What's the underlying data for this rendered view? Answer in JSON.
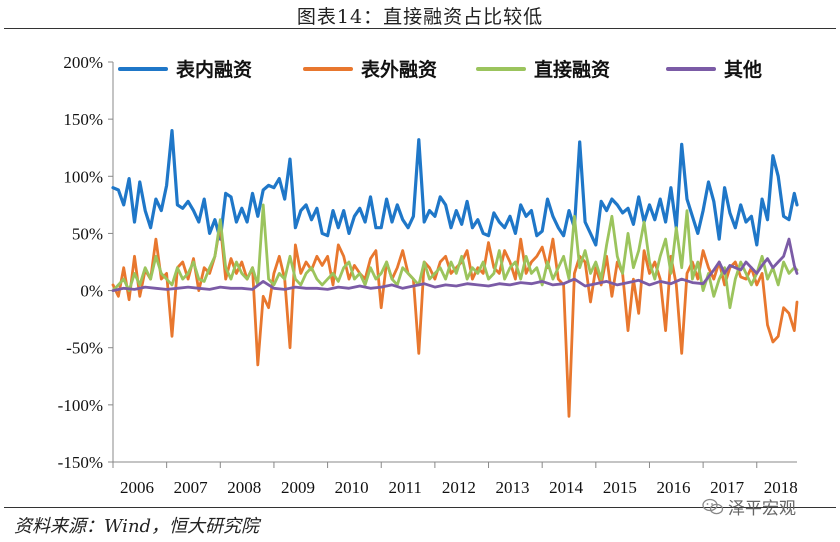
{
  "header": {
    "title": "图表14：直接融资占比较低"
  },
  "footer": {
    "source": "资料来源：Wind，恒大研究院",
    "watermark": "泽平宏观"
  },
  "chart_data": {
    "type": "line",
    "title": "图表14：直接融资占比较低",
    "xlabel": "",
    "ylabel": "",
    "ylim": [
      -150,
      200
    ],
    "yticks": [
      -150,
      -100,
      -50,
      0,
      50,
      100,
      150,
      200
    ],
    "ytick_labels": [
      "-150%",
      "-100%",
      "-50%",
      "0%",
      "50%",
      "100%",
      "150%",
      "200%"
    ],
    "xlim": [
      2006.0,
      2018.75
    ],
    "xticks": [
      2006,
      2007,
      2008,
      2009,
      2010,
      2011,
      2012,
      2013,
      2014,
      2015,
      2016,
      2017,
      2018
    ],
    "xtick_labels": [
      "2006",
      "2007",
      "2008",
      "2009",
      "2010",
      "2011",
      "2012",
      "2013",
      "2014",
      "2015",
      "2016",
      "2017",
      "2018"
    ],
    "grid": false,
    "legend_position": "top",
    "series": [
      {
        "name": "表内融资",
        "color": "#1F77C8",
        "x": [
          2006.0,
          2006.1,
          2006.2,
          2006.3,
          2006.4,
          2006.5,
          2006.6,
          2006.7,
          2006.8,
          2006.9,
          2007.0,
          2007.1,
          2007.2,
          2007.3,
          2007.4,
          2007.5,
          2007.6,
          2007.7,
          2007.8,
          2007.9,
          2008.0,
          2008.1,
          2008.2,
          2008.3,
          2008.4,
          2008.5,
          2008.6,
          2008.7,
          2008.8,
          2008.9,
          2009.0,
          2009.1,
          2009.2,
          2009.3,
          2009.4,
          2009.5,
          2009.6,
          2009.7,
          2009.8,
          2009.9,
          2010.0,
          2010.1,
          2010.2,
          2010.3,
          2010.4,
          2010.5,
          2010.6,
          2010.7,
          2010.8,
          2010.9,
          2011.0,
          2011.1,
          2011.2,
          2011.3,
          2011.4,
          2011.5,
          2011.6,
          2011.7,
          2011.8,
          2011.9,
          2012.0,
          2012.1,
          2012.2,
          2012.3,
          2012.4,
          2012.5,
          2012.6,
          2012.7,
          2012.8,
          2012.9,
          2013.0,
          2013.1,
          2013.2,
          2013.3,
          2013.4,
          2013.5,
          2013.6,
          2013.7,
          2013.8,
          2013.9,
          2014.0,
          2014.1,
          2014.2,
          2014.3,
          2014.4,
          2014.5,
          2014.6,
          2014.7,
          2014.8,
          2014.9,
          2015.0,
          2015.1,
          2015.2,
          2015.3,
          2015.4,
          2015.5,
          2015.6,
          2015.7,
          2015.8,
          2015.9,
          2016.0,
          2016.1,
          2016.2,
          2016.3,
          2016.4,
          2016.5,
          2016.6,
          2016.7,
          2016.8,
          2016.9,
          2017.0,
          2017.1,
          2017.2,
          2017.3,
          2017.4,
          2017.5,
          2017.6,
          2017.7,
          2017.8,
          2017.9,
          2018.0,
          2018.1,
          2018.2,
          2018.3,
          2018.4,
          2018.5,
          2018.6,
          2018.7,
          2018.75
        ],
        "values": [
          90,
          88,
          75,
          98,
          60,
          95,
          70,
          55,
          80,
          70,
          92,
          140,
          75,
          72,
          78,
          70,
          60,
          80,
          50,
          62,
          45,
          85,
          82,
          60,
          72,
          60,
          85,
          65,
          88,
          92,
          90,
          98,
          80,
          115,
          55,
          70,
          75,
          62,
          72,
          50,
          48,
          70,
          55,
          70,
          50,
          65,
          72,
          60,
          82,
          55,
          55,
          80,
          60,
          75,
          62,
          55,
          65,
          132,
          60,
          70,
          65,
          82,
          75,
          55,
          70,
          58,
          78,
          55,
          62,
          50,
          48,
          68,
          60,
          55,
          65,
          50,
          75,
          65,
          70,
          48,
          52,
          80,
          65,
          55,
          48,
          70,
          55,
          130,
          60,
          50,
          40,
          78,
          70,
          80,
          75,
          68,
          72,
          58,
          82,
          60,
          75,
          62,
          80,
          60,
          90,
          55,
          128,
          80,
          65,
          50,
          70,
          95,
          78,
          45,
          90,
          68,
          55,
          75,
          60,
          65,
          40,
          80,
          62,
          118,
          100,
          65,
          62,
          85,
          75
        ]
      },
      {
        "name": "表外融资",
        "color": "#E8772E",
        "x": [
          2006.0,
          2006.1,
          2006.2,
          2006.3,
          2006.4,
          2006.5,
          2006.6,
          2006.7,
          2006.8,
          2006.9,
          2007.0,
          2007.1,
          2007.2,
          2007.3,
          2007.4,
          2007.5,
          2007.6,
          2007.7,
          2007.8,
          2007.9,
          2008.0,
          2008.1,
          2008.2,
          2008.3,
          2008.4,
          2008.5,
          2008.6,
          2008.7,
          2008.8,
          2008.9,
          2009.0,
          2009.1,
          2009.2,
          2009.3,
          2009.4,
          2009.5,
          2009.6,
          2009.7,
          2009.8,
          2009.9,
          2010.0,
          2010.1,
          2010.2,
          2010.3,
          2010.4,
          2010.5,
          2010.6,
          2010.7,
          2010.8,
          2010.9,
          2011.0,
          2011.1,
          2011.2,
          2011.3,
          2011.4,
          2011.5,
          2011.6,
          2011.7,
          2011.8,
          2011.9,
          2012.0,
          2012.1,
          2012.2,
          2012.3,
          2012.4,
          2012.5,
          2012.6,
          2012.7,
          2012.8,
          2012.9,
          2013.0,
          2013.1,
          2013.2,
          2013.3,
          2013.4,
          2013.5,
          2013.6,
          2013.7,
          2013.8,
          2013.9,
          2014.0,
          2014.1,
          2014.2,
          2014.3,
          2014.4,
          2014.5,
          2014.6,
          2014.7,
          2014.8,
          2014.9,
          2015.0,
          2015.1,
          2015.2,
          2015.3,
          2015.4,
          2015.5,
          2015.6,
          2015.7,
          2015.8,
          2015.9,
          2016.0,
          2016.1,
          2016.2,
          2016.3,
          2016.4,
          2016.5,
          2016.6,
          2016.7,
          2016.8,
          2016.9,
          2017.0,
          2017.1,
          2017.2,
          2017.3,
          2017.4,
          2017.5,
          2017.6,
          2017.7,
          2017.8,
          2017.9,
          2018.0,
          2018.1,
          2018.2,
          2018.3,
          2018.4,
          2018.5,
          2018.6,
          2018.7,
          2018.75
        ],
        "values": [
          5,
          -5,
          20,
          -8,
          30,
          -5,
          18,
          10,
          45,
          10,
          15,
          -40,
          20,
          25,
          10,
          28,
          0,
          20,
          15,
          30,
          58,
          10,
          28,
          15,
          25,
          10,
          20,
          -65,
          -5,
          -15,
          15,
          30,
          10,
          -50,
          40,
          15,
          25,
          18,
          30,
          22,
          30,
          5,
          40,
          30,
          10,
          22,
          15,
          10,
          28,
          35,
          -15,
          25,
          10,
          20,
          35,
          15,
          10,
          -55,
          25,
          20,
          10,
          25,
          30,
          15,
          20,
          25,
          35,
          10,
          20,
          15,
          42,
          20,
          15,
          35,
          25,
          10,
          45,
          15,
          25,
          30,
          38,
          20,
          45,
          10,
          5,
          -110,
          15,
          30,
          25,
          -10,
          20,
          5,
          30,
          -5,
          25,
          15,
          -35,
          10,
          -20,
          35,
          15,
          25,
          10,
          -35,
          30,
          5,
          -55,
          15,
          25,
          10,
          35,
          20,
          10,
          25,
          5,
          20,
          25,
          12,
          10,
          20,
          5,
          15,
          -30,
          -45,
          -40,
          -15,
          -20,
          -35,
          -10
        ]
      },
      {
        "name": "直接融资",
        "color": "#9BC45D",
        "x": [
          2006.0,
          2006.1,
          2006.2,
          2006.3,
          2006.4,
          2006.5,
          2006.6,
          2006.7,
          2006.8,
          2006.9,
          2007.0,
          2007.1,
          2007.2,
          2007.3,
          2007.4,
          2007.5,
          2007.6,
          2007.7,
          2007.8,
          2007.9,
          2008.0,
          2008.1,
          2008.2,
          2008.3,
          2008.4,
          2008.5,
          2008.6,
          2008.7,
          2008.8,
          2008.9,
          2009.0,
          2009.1,
          2009.2,
          2009.3,
          2009.4,
          2009.5,
          2009.6,
          2009.7,
          2009.8,
          2009.9,
          2010.0,
          2010.1,
          2010.2,
          2010.3,
          2010.4,
          2010.5,
          2010.6,
          2010.7,
          2010.8,
          2010.9,
          2011.0,
          2011.1,
          2011.2,
          2011.3,
          2011.4,
          2011.5,
          2011.6,
          2011.7,
          2011.8,
          2011.9,
          2012.0,
          2012.1,
          2012.2,
          2012.3,
          2012.4,
          2012.5,
          2012.6,
          2012.7,
          2012.8,
          2012.9,
          2013.0,
          2013.1,
          2013.2,
          2013.3,
          2013.4,
          2013.5,
          2013.6,
          2013.7,
          2013.8,
          2013.9,
          2014.0,
          2014.1,
          2014.2,
          2014.3,
          2014.4,
          2014.5,
          2014.6,
          2014.7,
          2014.8,
          2014.9,
          2015.0,
          2015.1,
          2015.2,
          2015.3,
          2015.4,
          2015.5,
          2015.6,
          2015.7,
          2015.8,
          2015.9,
          2016.0,
          2016.1,
          2016.2,
          2016.3,
          2016.4,
          2016.5,
          2016.6,
          2016.7,
          2016.8,
          2016.9,
          2017.0,
          2017.1,
          2017.2,
          2017.3,
          2017.4,
          2017.5,
          2017.6,
          2017.7,
          2017.8,
          2017.9,
          2018.0,
          2018.1,
          2018.2,
          2018.3,
          2018.4,
          2018.5,
          2018.6,
          2018.7,
          2018.75
        ],
        "values": [
          0,
          5,
          10,
          0,
          15,
          5,
          20,
          10,
          30,
          15,
          10,
          5,
          20,
          10,
          15,
          25,
          10,
          8,
          20,
          30,
          62,
          20,
          10,
          25,
          15,
          10,
          20,
          5,
          75,
          10,
          5,
          15,
          10,
          30,
          10,
          5,
          15,
          20,
          10,
          5,
          10,
          15,
          8,
          20,
          25,
          10,
          15,
          5,
          20,
          10,
          15,
          25,
          10,
          5,
          20,
          15,
          10,
          5,
          25,
          10,
          15,
          20,
          10,
          25,
          15,
          30,
          10,
          20,
          15,
          25,
          10,
          15,
          35,
          10,
          20,
          25,
          10,
          30,
          15,
          20,
          5,
          25,
          10,
          20,
          30,
          10,
          65,
          20,
          35,
          15,
          25,
          10,
          40,
          65,
          30,
          15,
          50,
          20,
          35,
          60,
          25,
          10,
          30,
          45,
          15,
          55,
          20,
          70,
          10,
          25,
          0,
          15,
          -5,
          10,
          20,
          -15,
          10,
          25,
          15,
          5,
          15,
          30,
          10,
          20,
          5,
          25,
          15,
          20,
          18
        ]
      },
      {
        "name": "其他",
        "color": "#7B5BA6",
        "x": [
          2006.0,
          2006.2,
          2006.4,
          2006.6,
          2006.8,
          2007.0,
          2007.2,
          2007.4,
          2007.6,
          2007.8,
          2008.0,
          2008.2,
          2008.4,
          2008.6,
          2008.8,
          2009.0,
          2009.2,
          2009.4,
          2009.6,
          2009.8,
          2010.0,
          2010.2,
          2010.4,
          2010.6,
          2010.8,
          2011.0,
          2011.2,
          2011.4,
          2011.6,
          2011.8,
          2012.0,
          2012.2,
          2012.4,
          2012.6,
          2012.8,
          2013.0,
          2013.2,
          2013.4,
          2013.6,
          2013.8,
          2014.0,
          2014.2,
          2014.4,
          2014.6,
          2014.8,
          2015.0,
          2015.2,
          2015.4,
          2015.6,
          2015.8,
          2016.0,
          2016.2,
          2016.4,
          2016.6,
          2016.8,
          2017.0,
          2017.1,
          2017.2,
          2017.3,
          2017.4,
          2017.5,
          2017.6,
          2017.7,
          2017.8,
          2017.9,
          2018.0,
          2018.1,
          2018.2,
          2018.3,
          2018.4,
          2018.5,
          2018.6,
          2018.7,
          2018.75
        ],
        "values": [
          0,
          2,
          1,
          3,
          2,
          1,
          2,
          3,
          2,
          1,
          3,
          2,
          2,
          1,
          8,
          2,
          1,
          3,
          2,
          2,
          1,
          3,
          2,
          4,
          2,
          3,
          5,
          2,
          4,
          6,
          3,
          5,
          4,
          6,
          5,
          4,
          6,
          5,
          7,
          6,
          8,
          5,
          6,
          10,
          4,
          6,
          8,
          5,
          7,
          9,
          5,
          8,
          6,
          10,
          7,
          6,
          12,
          18,
          25,
          15,
          22,
          20,
          18,
          25,
          20,
          15,
          22,
          28,
          20,
          25,
          30,
          45,
          22,
          15
        ]
      }
    ]
  }
}
